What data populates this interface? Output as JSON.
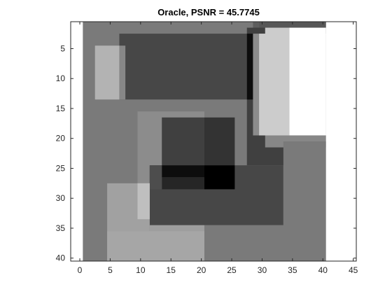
{
  "chart_data": {
    "type": "heatmap",
    "title": "Oracle, PSNR = 45.7745",
    "colormap": "gray",
    "xlim": [
      -1.5,
      45.5
    ],
    "ylim": [
      0.5,
      40.5
    ],
    "y_reversed": true,
    "x_ticks": [
      0,
      5,
      10,
      15,
      20,
      25,
      30,
      35,
      40,
      45
    ],
    "x_tick_labels": [
      "0",
      "5",
      "10",
      "15",
      "20",
      "25",
      "30",
      "35",
      "40",
      "45"
    ],
    "y_ticks": [
      5,
      10,
      15,
      20,
      25,
      30,
      35,
      40
    ],
    "y_tick_labels": [
      "5",
      "10",
      "15",
      "20",
      "25",
      "30",
      "35",
      "40"
    ],
    "image_extent": {
      "cols": [
        1,
        40
      ],
      "rows": [
        1,
        40
      ]
    },
    "background_value": 0.48,
    "regions": [
      {
        "cols": [
          29,
          40
        ],
        "rows": [
          1,
          2
        ],
        "value": 0.37
      },
      {
        "cols": [
          30,
          40
        ],
        "rows": [
          1,
          1
        ],
        "value": 0.34
      },
      {
        "cols": [
          7,
          27
        ],
        "rows": [
          3,
          13
        ],
        "value": 0.28
      },
      {
        "cols": [
          3,
          6
        ],
        "rows": [
          5,
          13
        ],
        "value": 0.7
      },
      {
        "cols": [
          7,
          7
        ],
        "rows": [
          5,
          13
        ],
        "value": 0.53
      },
      {
        "cols": [
          28,
          34
        ],
        "rows": [
          2,
          24
        ],
        "value": 0.25
      },
      {
        "cols": [
          28,
          28
        ],
        "rows": [
          3,
          13
        ],
        "value": 0.05
      },
      {
        "cols": [
          29,
          30
        ],
        "rows": [
          3,
          19
        ],
        "value": 0.55
      },
      {
        "cols": [
          31,
          34
        ],
        "rows": [
          2,
          19
        ],
        "value": 0.8
      },
      {
        "cols": [
          35,
          40
        ],
        "rows": [
          2,
          19
        ],
        "value": 1.0
      },
      {
        "cols": [
          30,
          34
        ],
        "rows": [
          3,
          19
        ],
        "value": 0.8
      },
      {
        "cols": [
          31,
          40
        ],
        "rows": [
          20,
          21
        ],
        "value": 0.53
      },
      {
        "cols": [
          10,
          20
        ],
        "rows": [
          16,
          33
        ],
        "value": 0.55
      },
      {
        "cols": [
          14,
          20
        ],
        "rows": [
          17,
          28
        ],
        "value": 0.25
      },
      {
        "cols": [
          21,
          25
        ],
        "rows": [
          17,
          28
        ],
        "value": 0.2
      },
      {
        "cols": [
          12,
          33
        ],
        "rows": [
          25,
          34
        ],
        "value": 0.28
      },
      {
        "cols": [
          14,
          20
        ],
        "rows": [
          25,
          26
        ],
        "value": 0.05
      },
      {
        "cols": [
          14,
          20
        ],
        "rows": [
          27,
          28
        ],
        "value": 0.15
      },
      {
        "cols": [
          21,
          25
        ],
        "rows": [
          25,
          28
        ],
        "value": 0.0
      },
      {
        "cols": [
          12,
          13
        ],
        "rows": [
          25,
          28
        ],
        "value": 0.3
      },
      {
        "cols": [
          5,
          11
        ],
        "rows": [
          28,
          40
        ],
        "value": 0.63
      },
      {
        "cols": [
          10,
          11
        ],
        "rows": [
          28,
          33
        ],
        "value": 0.75
      },
      {
        "cols": [
          12,
          20
        ],
        "rows": [
          35,
          40
        ],
        "value": 0.62
      },
      {
        "cols": [
          5,
          20
        ],
        "rows": [
          36,
          40
        ],
        "value": 0.65
      },
      {
        "cols": [
          21,
          40
        ],
        "rows": [
          35,
          40
        ],
        "value": 0.48
      },
      {
        "cols": [
          34,
          40
        ],
        "rows": [
          21,
          34
        ],
        "value": 0.48
      }
    ]
  }
}
